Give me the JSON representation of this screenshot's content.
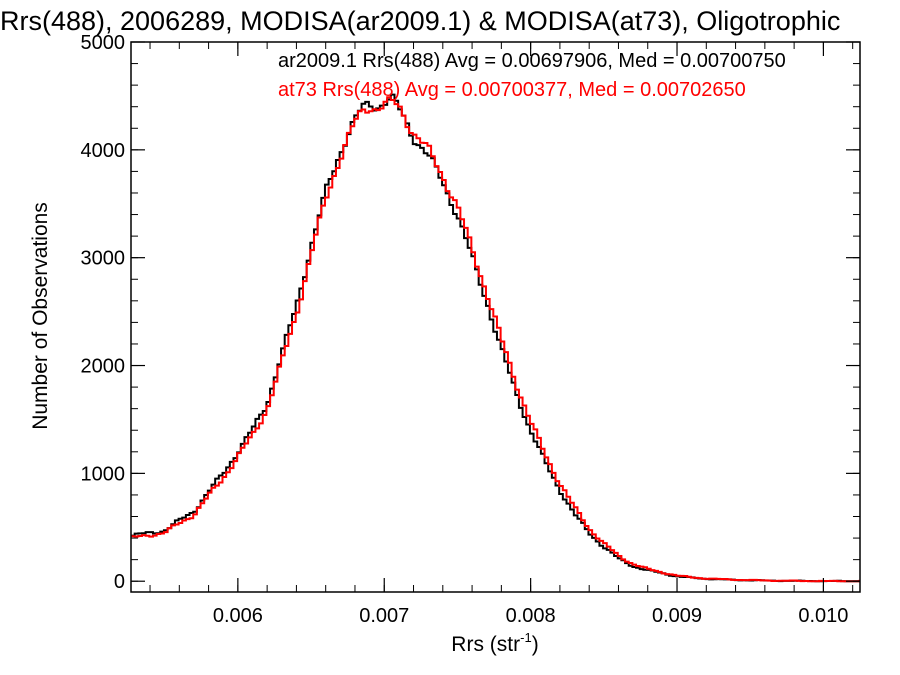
{
  "chart_data": {
    "type": "line",
    "title": "Rrs(488), 2006289, MODISA(ar2009.1) & MODISA(at73), Oligotrophic",
    "xlabel_main": "Rrs (str",
    "xlabel_sup": "-1",
    "xlabel_tail": ")",
    "ylabel": "Number of Observations",
    "xlim": [
      0.00527,
      0.01025
    ],
    "ylim": [
      -100,
      5000
    ],
    "x_ticks": [
      {
        "value": 0.006,
        "label": "0.006"
      },
      {
        "value": 0.007,
        "label": "0.007"
      },
      {
        "value": 0.008,
        "label": "0.008"
      },
      {
        "value": 0.009,
        "label": "0.009"
      },
      {
        "value": 0.01,
        "label": "0.010"
      }
    ],
    "x_minor_step": 0.0002,
    "y_ticks": [
      {
        "value": 0,
        "label": "0"
      },
      {
        "value": 1000,
        "label": "1000"
      },
      {
        "value": 2000,
        "label": "2000"
      },
      {
        "value": 3000,
        "label": "3000"
      },
      {
        "value": 4000,
        "label": "4000"
      },
      {
        "value": 5000,
        "label": "5000"
      }
    ],
    "y_minor_step": 200,
    "bin_width": 2.5e-05,
    "grid": false,
    "legend_position": "top-right",
    "series": [
      {
        "name": "ar2009.1",
        "legend_text": "ar2009.1 Rrs(488) Avg = 0.00697906, Med = 0.00700750",
        "color": "#000000",
        "x": [
          0.00527,
          0.0055,
          0.0057,
          0.0059,
          0.0061,
          0.0062,
          0.0063,
          0.0064,
          0.0065,
          0.0066,
          0.0067,
          0.00675,
          0.0068,
          0.00685,
          0.0069,
          0.00695,
          0.007,
          0.00705,
          0.0071,
          0.00715,
          0.0072,
          0.0073,
          0.0074,
          0.0075,
          0.0076,
          0.0077,
          0.0078,
          0.0079,
          0.008,
          0.0081,
          0.0082,
          0.0083,
          0.0084,
          0.0085,
          0.0086,
          0.0087,
          0.0088,
          0.0089,
          0.009,
          0.0091,
          0.0092,
          0.0094,
          0.0096,
          0.0098,
          0.01,
          0.01025
        ],
        "y": [
          420,
          470,
          650,
          1000,
          1400,
          1650,
          2100,
          2550,
          3100,
          3600,
          3980,
          4150,
          4280,
          4380,
          4420,
          4400,
          4450,
          4480,
          4380,
          4250,
          4120,
          3950,
          3700,
          3400,
          3000,
          2600,
          2150,
          1750,
          1400,
          1100,
          850,
          620,
          450,
          320,
          210,
          140,
          100,
          75,
          45,
          32,
          22,
          12,
          6,
          3,
          1,
          0
        ]
      },
      {
        "name": "at73",
        "legend_text": "at73 Rrs(488) Avg = 0.00700377, Med = 0.00702650",
        "color": "#ff0000",
        "x": [
          0.00527,
          0.0055,
          0.0057,
          0.0059,
          0.0061,
          0.0062,
          0.0063,
          0.0064,
          0.0065,
          0.0066,
          0.0067,
          0.00675,
          0.0068,
          0.00685,
          0.0069,
          0.00695,
          0.007,
          0.00705,
          0.0071,
          0.00715,
          0.0072,
          0.0073,
          0.0074,
          0.0075,
          0.0076,
          0.0077,
          0.0078,
          0.0079,
          0.008,
          0.0081,
          0.0082,
          0.0083,
          0.0084,
          0.0085,
          0.0086,
          0.0087,
          0.0088,
          0.0089,
          0.009,
          0.0091,
          0.0092,
          0.0094,
          0.0096,
          0.0098,
          0.01,
          0.01025
        ],
        "y": [
          400,
          450,
          620,
          960,
          1350,
          1600,
          2030,
          2480,
          3030,
          3540,
          3940,
          4100,
          4250,
          4350,
          4400,
          4390,
          4420,
          4440,
          4400,
          4280,
          4160,
          4000,
          3760,
          3470,
          3080,
          2680,
          2240,
          1840,
          1480,
          1170,
          910,
          680,
          490,
          350,
          235,
          160,
          112,
          82,
          52,
          36,
          25,
          14,
          7,
          3,
          1,
          0
        ]
      }
    ]
  }
}
